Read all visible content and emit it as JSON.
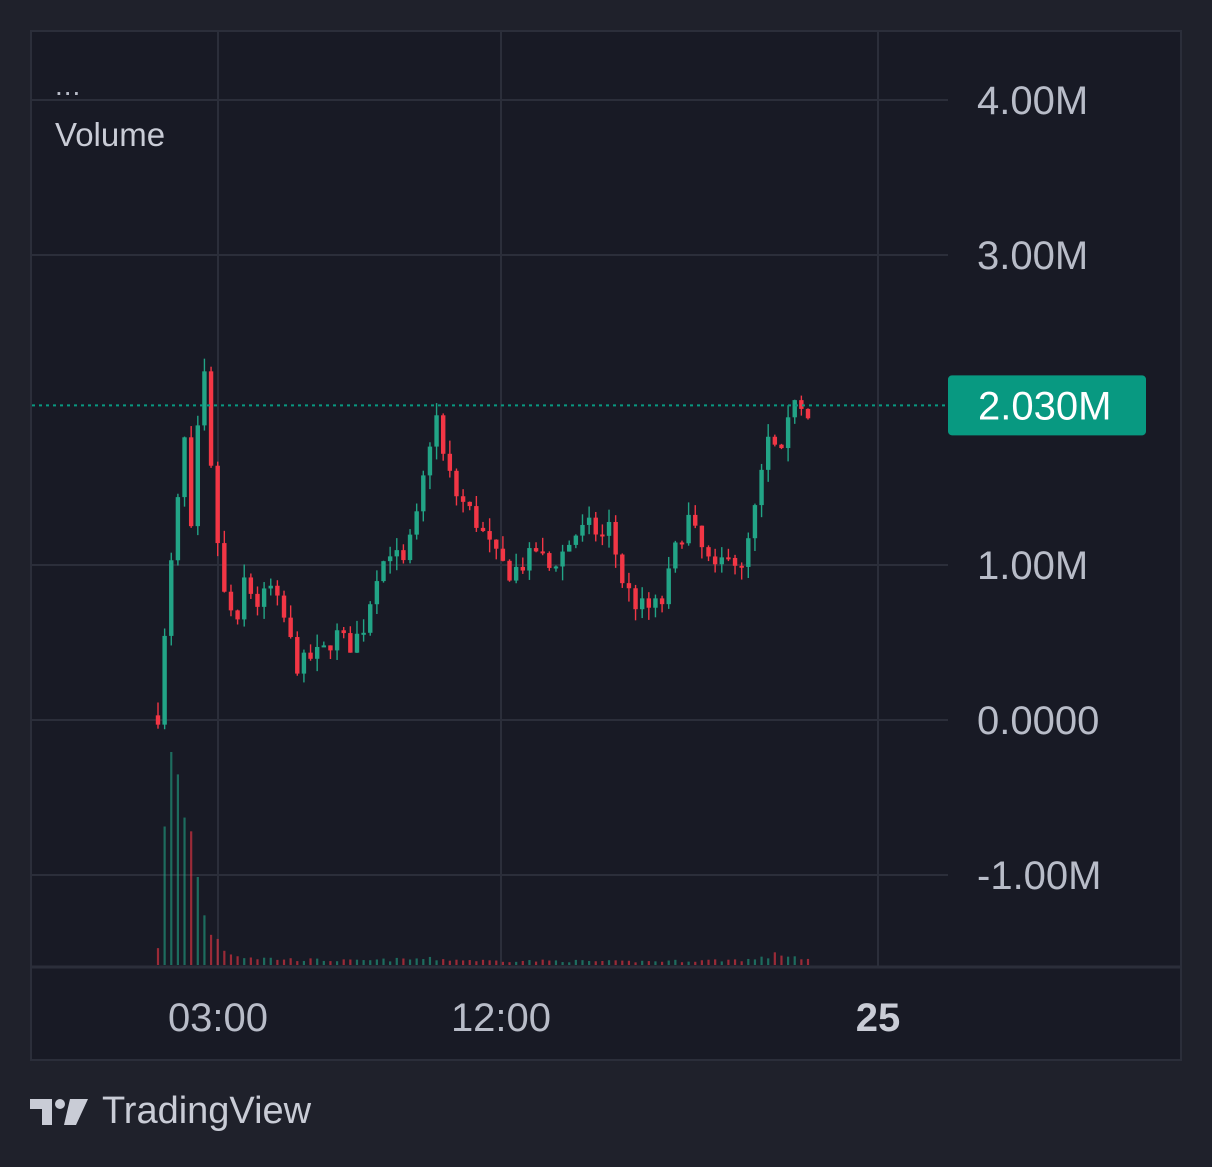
{
  "legend": {
    "menu": "...",
    "title": "Volume"
  },
  "brand": {
    "name": "TradingView",
    "icon": "tradingview-logo-icon"
  },
  "colors": {
    "up": "#22a486",
    "down": "#f23645",
    "grid": "#2b2e3a",
    "label_bg": "#089981",
    "axis_text": "#b8bcc8",
    "background": "#181a25"
  },
  "chart_data": {
    "type": "candlestick",
    "title": "Volume",
    "y_ticks": [
      "4.00M",
      "3.00M",
      "1.00M",
      "0.0000",
      "-1.00M"
    ],
    "y_tick_values": [
      4000000,
      3000000,
      1000000,
      0,
      -1000000
    ],
    "x_ticks": [
      {
        "label": "03:00",
        "bold": false
      },
      {
        "label": "12:00",
        "bold": false
      },
      {
        "label": "25",
        "bold": true
      }
    ],
    "last_value": 2030000,
    "last_value_label": "2.030M",
    "ylim": [
      -1500000,
      4300000
    ],
    "grid": true,
    "price_path": [
      [
        0,
        30000
      ],
      [
        2,
        1000000
      ],
      [
        4,
        1800000
      ],
      [
        5,
        1200000
      ],
      [
        6,
        1850000
      ],
      [
        7,
        2200000
      ],
      [
        8,
        1600000
      ],
      [
        9,
        1150000
      ],
      [
        10,
        800000
      ],
      [
        12,
        600000
      ],
      [
        13,
        900000
      ],
      [
        15,
        750000
      ],
      [
        17,
        850000
      ],
      [
        19,
        650000
      ],
      [
        21,
        350000
      ],
      [
        23,
        400000
      ],
      [
        25,
        450000
      ],
      [
        27,
        550000
      ],
      [
        29,
        480000
      ],
      [
        31,
        600000
      ],
      [
        33,
        950000
      ],
      [
        35,
        1100000
      ],
      [
        37,
        1000000
      ],
      [
        39,
        1300000
      ],
      [
        41,
        1800000
      ],
      [
        42,
        1950000
      ],
      [
        43,
        1700000
      ],
      [
        45,
        1450000
      ],
      [
        47,
        1350000
      ],
      [
        49,
        1200000
      ],
      [
        51,
        1050000
      ],
      [
        53,
        950000
      ],
      [
        55,
        1000000
      ],
      [
        57,
        1100000
      ],
      [
        59,
        980000
      ],
      [
        61,
        1080000
      ],
      [
        63,
        1200000
      ],
      [
        65,
        1250000
      ],
      [
        67,
        1180000
      ],
      [
        68,
        1250000
      ],
      [
        70,
        900000
      ],
      [
        72,
        750000
      ],
      [
        74,
        720000
      ],
      [
        76,
        760000
      ],
      [
        78,
        1100000
      ],
      [
        80,
        1300000
      ],
      [
        82,
        1100000
      ],
      [
        84,
        950000
      ],
      [
        86,
        1100000
      ],
      [
        88,
        950000
      ],
      [
        90,
        1350000
      ],
      [
        92,
        1800000
      ],
      [
        94,
        1700000
      ],
      [
        96,
        2100000
      ],
      [
        98,
        2000000
      ]
    ],
    "candle_count": 98,
    "volume_profile": [
      [
        0,
        150000
      ],
      [
        1,
        850000
      ],
      [
        2,
        1400000
      ],
      [
        3,
        1200000
      ],
      [
        4,
        1080000
      ],
      [
        5,
        950000
      ],
      [
        6,
        600000
      ],
      [
        7,
        400000
      ],
      [
        8,
        250000
      ],
      [
        9,
        180000
      ],
      [
        10,
        120000
      ],
      [
        12,
        70000
      ],
      [
        15,
        50000
      ],
      [
        20,
        40000
      ],
      [
        30,
        30000
      ],
      [
        40,
        45000
      ],
      [
        50,
        30000
      ],
      [
        60,
        30000
      ],
      [
        70,
        25000
      ],
      [
        80,
        30000
      ],
      [
        90,
        40000
      ],
      [
        94,
        80000
      ],
      [
        96,
        60000
      ],
      [
        98,
        40000
      ]
    ]
  }
}
